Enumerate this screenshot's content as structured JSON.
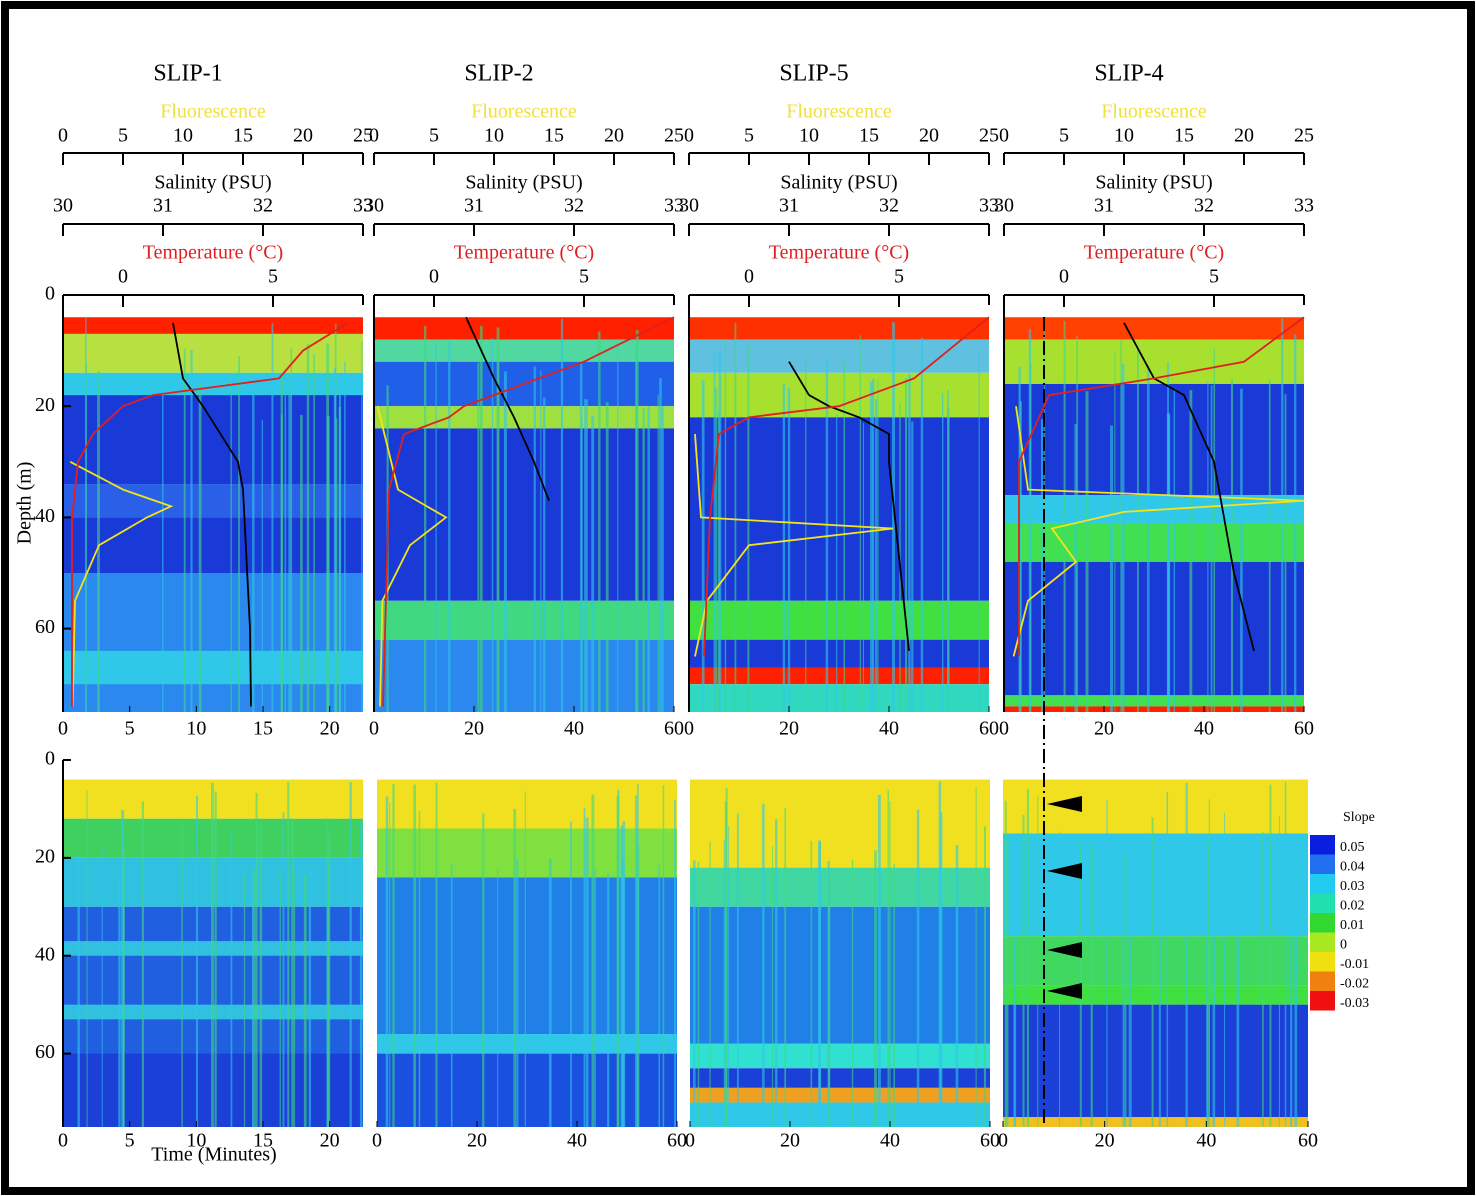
{
  "chart_data": [
    {
      "type": "profile",
      "title": "SLIP-1",
      "ylabel": "Depth (m)",
      "xlabel": "Time (Minutes)",
      "ylim": [
        0,
        75
      ],
      "yticks": [
        0,
        20,
        40,
        60
      ],
      "xlim": [
        0,
        22.5
      ],
      "xticks": [
        0,
        5,
        10,
        15,
        20
      ],
      "series": [
        {
          "name": "Fluorescence",
          "color": "#f5e31a",
          "xlim": [
            0,
            25
          ],
          "xticks": [
            0,
            5,
            10,
            15,
            20,
            25
          ],
          "depth": [
            30,
            35,
            38,
            40,
            45,
            55,
            74
          ],
          "values": [
            0.6,
            5,
            9,
            7,
            3,
            1,
            0.8
          ]
        },
        {
          "name": "Salinity (PSU)",
          "color": "#000000",
          "xlim": [
            30,
            33
          ],
          "xticks": [
            30,
            31,
            32,
            33
          ],
          "depth": [
            5,
            15,
            20,
            30,
            35,
            60,
            74
          ],
          "values": [
            31.1,
            31.2,
            31.4,
            31.75,
            31.8,
            31.87,
            31.88
          ]
        },
        {
          "name": "Temperature (°C)",
          "color": "#e02020",
          "xlim": [
            -2,
            8
          ],
          "xticks": [
            0,
            5
          ],
          "depth": [
            5,
            10,
            15,
            18,
            20,
            25,
            30,
            40,
            74
          ],
          "values": [
            7.5,
            6,
            5.2,
            1,
            0,
            -1,
            -1.5,
            -1.7,
            -1.7
          ]
        }
      ]
    },
    {
      "type": "profile",
      "title": "SLIP-2",
      "ylim": [
        0,
        75
      ],
      "yticks": [
        0,
        20,
        40,
        60
      ],
      "xlim": [
        0,
        60
      ],
      "xticks": [
        0,
        20,
        40,
        60
      ],
      "series": [
        {
          "name": "Fluorescence",
          "color": "#f5e31a",
          "xlim": [
            0,
            25
          ],
          "xticks": [
            0,
            5,
            10,
            15,
            20,
            25
          ],
          "depth": [
            20,
            35,
            40,
            45,
            55,
            74
          ],
          "values": [
            0.3,
            2,
            6,
            3,
            0.7,
            0.5
          ]
        },
        {
          "name": "Salinity (PSU)",
          "color": "#000000",
          "xlim": [
            30,
            33
          ],
          "xticks": [
            30,
            31,
            32,
            33
          ],
          "depth": [
            4,
            15,
            22,
            30,
            37
          ],
          "values": [
            30.92,
            31.2,
            31.4,
            31.6,
            31.75
          ]
        },
        {
          "name": "Temperature (°C)",
          "color": "#e02020",
          "xlim": [
            -2,
            8
          ],
          "xticks": [
            0,
            5
          ],
          "depth": [
            4,
            12,
            20,
            22,
            25,
            35,
            74
          ],
          "values": [
            8,
            5,
            1,
            0.5,
            -1,
            -1.5,
            -1.7
          ]
        }
      ]
    },
    {
      "type": "profile",
      "title": "SLIP-5",
      "ylim": [
        0,
        75
      ],
      "yticks": [
        0,
        20,
        40,
        60
      ],
      "xlim": [
        0,
        60
      ],
      "xticks": [
        0,
        20,
        40,
        60
      ],
      "series": [
        {
          "name": "Fluorescence",
          "color": "#f5e31a",
          "xlim": [
            0,
            25
          ],
          "xticks": [
            0,
            5,
            10,
            15,
            20,
            25
          ],
          "depth": [
            25,
            40,
            42,
            45,
            55,
            65
          ],
          "values": [
            0.5,
            1,
            17,
            5,
            1.5,
            0.5
          ]
        },
        {
          "name": "Salinity (PSU)",
          "color": "#000000",
          "xlim": [
            30,
            33
          ],
          "xticks": [
            30,
            31,
            32,
            33
          ],
          "depth": [
            12,
            18,
            20,
            22,
            25,
            30,
            64
          ],
          "values": [
            31,
            31.2,
            31.4,
            31.7,
            32,
            32,
            32.2
          ]
        },
        {
          "name": "Temperature (°C)",
          "color": "#e02020",
          "xlim": [
            -2,
            8
          ],
          "xticks": [
            0,
            5
          ],
          "depth": [
            4,
            15,
            20,
            22,
            25,
            40,
            65
          ],
          "values": [
            8,
            5.5,
            3,
            0,
            -1,
            -1.3,
            -1.5
          ]
        }
      ]
    },
    {
      "type": "profile",
      "title": "SLIP-4",
      "ylim": [
        0,
        75
      ],
      "yticks": [
        0,
        20,
        40,
        60
      ],
      "xlim": [
        0,
        60
      ],
      "xticks": [
        0,
        20,
        40,
        60
      ],
      "series": [
        {
          "name": "Fluorescence",
          "color": "#f5e31a",
          "xlim": [
            0,
            25
          ],
          "xticks": [
            0,
            5,
            10,
            15,
            20,
            25
          ],
          "depth": [
            20,
            35,
            37,
            39,
            42,
            48,
            55,
            65
          ],
          "values": [
            1,
            2,
            25,
            10,
            4,
            6,
            2,
            0.8
          ]
        },
        {
          "name": "Salinity (PSU)",
          "color": "#000000",
          "xlim": [
            30,
            33
          ],
          "xticks": [
            30,
            31,
            32,
            33
          ],
          "depth": [
            5,
            15,
            18,
            30,
            50,
            64
          ],
          "values": [
            31.2,
            31.5,
            31.8,
            32.1,
            32.3,
            32.5
          ]
        },
        {
          "name": "Temperature (°C)",
          "color": "#e02020",
          "xlim": [
            -2,
            8
          ],
          "xticks": [
            0,
            5
          ],
          "depth": [
            4,
            12,
            15,
            18,
            30,
            50,
            65
          ],
          "values": [
            8,
            6,
            3,
            -0.5,
            -1.5,
            -1.5,
            -1.5
          ]
        }
      ]
    }
  ],
  "colorbar": {
    "title": "Slope",
    "values": [
      0.05,
      0.04,
      0.03,
      0.02,
      0.01,
      0,
      -0.01,
      -0.02,
      -0.03
    ],
    "colors": [
      "#0a1ee0",
      "#2070f0",
      "#22ccf0",
      "#20e0b0",
      "#30d830",
      "#a8e820",
      "#f0e010",
      "#f08010",
      "#f01010"
    ]
  }
}
